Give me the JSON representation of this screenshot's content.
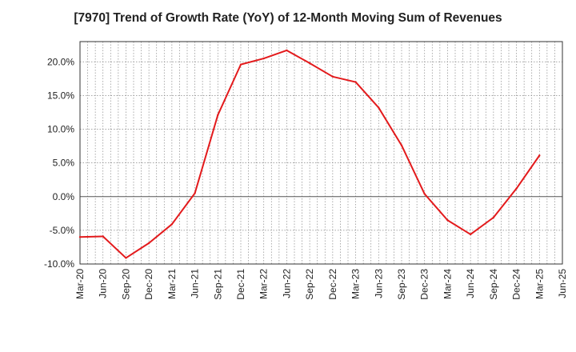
{
  "chart_data": {
    "type": "line",
    "title": "[7970]  Trend of Growth Rate (YoY) of 12-Month Moving Sum of Revenues",
    "xlabel": "",
    "ylabel": "",
    "x_ticks": [
      "Mar-20",
      "Jun-20",
      "Sep-20",
      "Dec-20",
      "Mar-21",
      "Jun-21",
      "Sep-21",
      "Dec-21",
      "Mar-22",
      "Jun-22",
      "Sep-22",
      "Dec-22",
      "Mar-23",
      "Jun-23",
      "Sep-23",
      "Dec-23",
      "Mar-24",
      "Jun-24",
      "Sep-24",
      "Dec-24",
      "Mar-25",
      "Jun-25"
    ],
    "y_ticks": [
      "-10.0%",
      "-5.0%",
      "0.0%",
      "5.0%",
      "10.0%",
      "15.0%",
      "20.0%"
    ],
    "ylim": [
      -10,
      23
    ],
    "grid": true,
    "series": [
      {
        "color": "#e31a1c",
        "x": [
          "Mar-20",
          "Jun-20",
          "Sep-20",
          "Dec-20",
          "Mar-21",
          "Jun-21",
          "Sep-21",
          "Dec-21",
          "Mar-22",
          "Jun-22",
          "Sep-22",
          "Dec-22",
          "Mar-23",
          "Jun-23",
          "Sep-23",
          "Dec-23",
          "Mar-24",
          "Jun-24",
          "Sep-24",
          "Dec-24",
          "Mar-25"
        ],
        "values": [
          -6.0,
          -5.9,
          -9.1,
          -6.9,
          -4.1,
          0.5,
          12.1,
          19.6,
          20.5,
          21.7,
          19.8,
          17.8,
          17.0,
          13.2,
          7.6,
          0.4,
          -3.5,
          -5.6,
          -3.1,
          1.2,
          6.1
        ]
      }
    ]
  }
}
